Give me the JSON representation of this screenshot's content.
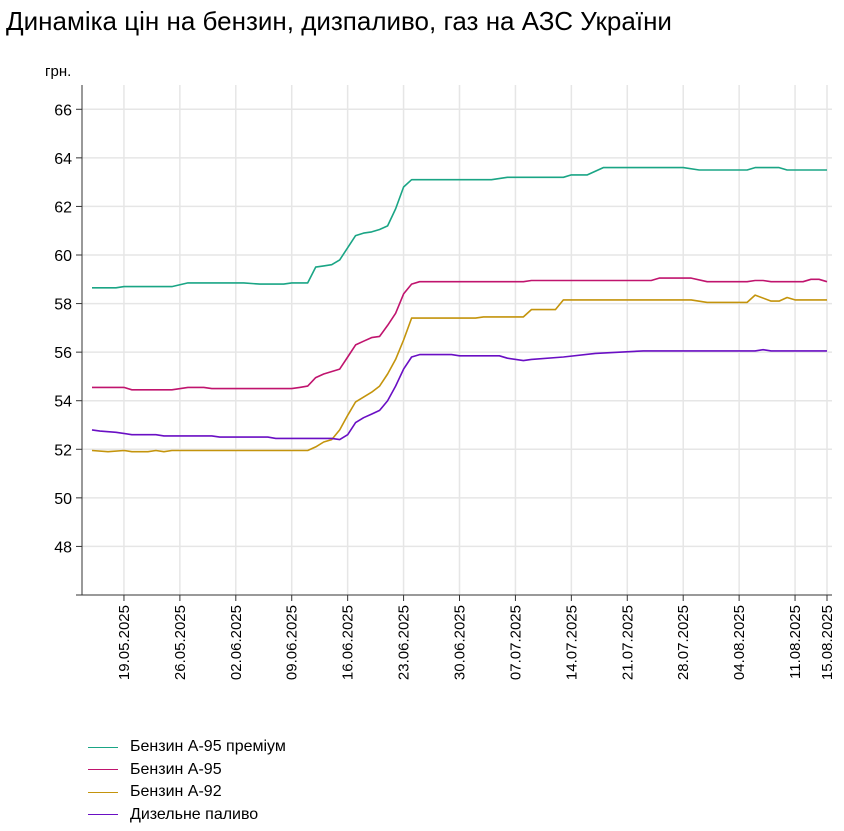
{
  "chart_data": {
    "type": "line",
    "title": "Динаміка цін на бензин, дизпаливо, газ на АЗС України",
    "ylabel": "грн.",
    "xlabel": "",
    "ylim": [
      46,
      67
    ],
    "yticks": [
      48,
      50,
      52,
      54,
      56,
      58,
      60,
      62,
      64,
      66
    ],
    "grid": true,
    "legend_position": "bottom-left",
    "x_dates": [
      "15.05.2025",
      "15.08.2025"
    ],
    "x_tick_labels": [
      "19.05.2025",
      "26.05.2025",
      "02.06.2025",
      "09.06.2025",
      "16.06.2025",
      "23.06.2025",
      "30.06.2025",
      "07.07.2025",
      "14.07.2025",
      "21.07.2025",
      "28.07.2025",
      "04.08.2025",
      "11.08.2025",
      "15.08.2025"
    ],
    "series": [
      {
        "name": "Бензин А-95 преміум",
        "color": "#1aa585",
        "points": [
          [
            "15.05.2025",
            58.65
          ],
          [
            "18.05.2025",
            58.65
          ],
          [
            "19.05.2025",
            58.7
          ],
          [
            "25.05.2025",
            58.7
          ],
          [
            "27.05.2025",
            58.85
          ],
          [
            "03.06.2025",
            58.85
          ],
          [
            "05.06.2025",
            58.8
          ],
          [
            "08.06.2025",
            58.8
          ],
          [
            "09.06.2025",
            58.85
          ],
          [
            "11.06.2025",
            58.85
          ],
          [
            "12.06.2025",
            59.5
          ],
          [
            "13.06.2025",
            59.55
          ],
          [
            "14.06.2025",
            59.6
          ],
          [
            "15.06.2025",
            59.8
          ],
          [
            "16.06.2025",
            60.3
          ],
          [
            "17.06.2025",
            60.8
          ],
          [
            "18.06.2025",
            60.9
          ],
          [
            "19.06.2025",
            60.95
          ],
          [
            "20.06.2025",
            61.05
          ],
          [
            "21.06.2025",
            61.2
          ],
          [
            "22.06.2025",
            61.9
          ],
          [
            "23.06.2025",
            62.8
          ],
          [
            "24.06.2025",
            63.1
          ],
          [
            "04.07.2025",
            63.1
          ],
          [
            "06.07.2025",
            63.2
          ],
          [
            "13.07.2025",
            63.2
          ],
          [
            "14.07.2025",
            63.3
          ],
          [
            "16.07.2025",
            63.3
          ],
          [
            "18.07.2025",
            63.6
          ],
          [
            "28.07.2025",
            63.6
          ],
          [
            "30.07.2025",
            63.5
          ],
          [
            "05.08.2025",
            63.5
          ],
          [
            "06.08.2025",
            63.6
          ],
          [
            "09.08.2025",
            63.6
          ],
          [
            "10.08.2025",
            63.5
          ],
          [
            "15.08.2025",
            63.5
          ]
        ]
      },
      {
        "name": "Бензин А-95",
        "color": "#c0146e",
        "points": [
          [
            "15.05.2025",
            54.55
          ],
          [
            "19.05.2025",
            54.55
          ],
          [
            "20.05.2025",
            54.45
          ],
          [
            "25.05.2025",
            54.45
          ],
          [
            "27.05.2025",
            54.55
          ],
          [
            "29.05.2025",
            54.55
          ],
          [
            "30.05.2025",
            54.5
          ],
          [
            "09.06.2025",
            54.5
          ],
          [
            "10.06.2025",
            54.55
          ],
          [
            "11.06.2025",
            54.6
          ],
          [
            "12.06.2025",
            54.95
          ],
          [
            "13.06.2025",
            55.1
          ],
          [
            "15.06.2025",
            55.3
          ],
          [
            "16.06.2025",
            55.8
          ],
          [
            "17.06.2025",
            56.3
          ],
          [
            "18.06.2025",
            56.45
          ],
          [
            "19.06.2025",
            56.6
          ],
          [
            "20.06.2025",
            56.65
          ],
          [
            "21.06.2025",
            57.1
          ],
          [
            "22.06.2025",
            57.6
          ],
          [
            "23.06.2025",
            58.4
          ],
          [
            "24.06.2025",
            58.8
          ],
          [
            "25.06.2025",
            58.9
          ],
          [
            "08.07.2025",
            58.9
          ],
          [
            "09.07.2025",
            58.95
          ],
          [
            "24.07.2025",
            58.95
          ],
          [
            "25.07.2025",
            59.05
          ],
          [
            "29.07.2025",
            59.05
          ],
          [
            "31.07.2025",
            58.9
          ],
          [
            "05.08.2025",
            58.9
          ],
          [
            "06.08.2025",
            58.95
          ],
          [
            "07.08.2025",
            58.95
          ],
          [
            "08.08.2025",
            58.9
          ],
          [
            "12.08.2025",
            58.9
          ],
          [
            "13.08.2025",
            59.0
          ],
          [
            "14.08.2025",
            59.0
          ],
          [
            "15.08.2025",
            58.9
          ]
        ]
      },
      {
        "name": "Бензин А-92",
        "color": "#c4940c",
        "points": [
          [
            "15.05.2025",
            51.95
          ],
          [
            "17.05.2025",
            51.9
          ],
          [
            "19.05.2025",
            51.95
          ],
          [
            "20.05.2025",
            51.9
          ],
          [
            "22.05.2025",
            51.9
          ],
          [
            "23.05.2025",
            51.95
          ],
          [
            "24.05.2025",
            51.9
          ],
          [
            "25.05.2025",
            51.95
          ],
          [
            "09.06.2025",
            51.95
          ],
          [
            "11.06.2025",
            51.95
          ],
          [
            "12.06.2025",
            52.1
          ],
          [
            "13.06.2025",
            52.3
          ],
          [
            "14.06.2025",
            52.4
          ],
          [
            "15.06.2025",
            52.8
          ],
          [
            "16.06.2025",
            53.4
          ],
          [
            "17.06.2025",
            53.95
          ],
          [
            "18.06.2025",
            54.15
          ],
          [
            "19.06.2025",
            54.35
          ],
          [
            "20.06.2025",
            54.6
          ],
          [
            "21.06.2025",
            55.1
          ],
          [
            "22.06.2025",
            55.7
          ],
          [
            "23.06.2025",
            56.5
          ],
          [
            "24.06.2025",
            57.4
          ],
          [
            "02.07.2025",
            57.4
          ],
          [
            "03.07.2025",
            57.45
          ],
          [
            "08.07.2025",
            57.45
          ],
          [
            "09.07.2025",
            57.75
          ],
          [
            "12.07.2025",
            57.75
          ],
          [
            "13.07.2025",
            58.15
          ],
          [
            "29.07.2025",
            58.15
          ],
          [
            "31.07.2025",
            58.05
          ],
          [
            "05.08.2025",
            58.05
          ],
          [
            "06.08.2025",
            58.35
          ],
          [
            "08.08.2025",
            58.1
          ],
          [
            "09.08.2025",
            58.1
          ],
          [
            "10.08.2025",
            58.25
          ],
          [
            "11.08.2025",
            58.15
          ],
          [
            "15.08.2025",
            58.15
          ]
        ]
      },
      {
        "name": "Дизельне паливо",
        "color": "#6a0fc4",
        "points": [
          [
            "15.05.2025",
            52.8
          ],
          [
            "16.05.2025",
            52.75
          ],
          [
            "18.05.2025",
            52.7
          ],
          [
            "20.05.2025",
            52.6
          ],
          [
            "23.05.2025",
            52.6
          ],
          [
            "24.05.2025",
            52.55
          ],
          [
            "30.05.2025",
            52.55
          ],
          [
            "31.05.2025",
            52.5
          ],
          [
            "06.06.2025",
            52.5
          ],
          [
            "07.06.2025",
            52.45
          ],
          [
            "14.06.2025",
            52.45
          ],
          [
            "15.06.2025",
            52.4
          ],
          [
            "16.06.2025",
            52.6
          ],
          [
            "17.06.2025",
            53.1
          ],
          [
            "18.06.2025",
            53.3
          ],
          [
            "19.06.2025",
            53.45
          ],
          [
            "20.06.2025",
            53.6
          ],
          [
            "21.06.2025",
            54.0
          ],
          [
            "22.06.2025",
            54.6
          ],
          [
            "23.06.2025",
            55.3
          ],
          [
            "24.06.2025",
            55.8
          ],
          [
            "25.06.2025",
            55.9
          ],
          [
            "29.06.2025",
            55.9
          ],
          [
            "30.06.2025",
            55.85
          ],
          [
            "05.07.2025",
            55.85
          ],
          [
            "06.07.2025",
            55.75
          ],
          [
            "08.07.2025",
            55.65
          ],
          [
            "09.07.2025",
            55.7
          ],
          [
            "13.07.2025",
            55.8
          ],
          [
            "17.07.2025",
            55.95
          ],
          [
            "23.07.2025",
            56.05
          ],
          [
            "06.08.2025",
            56.05
          ],
          [
            "07.08.2025",
            56.1
          ],
          [
            "08.08.2025",
            56.05
          ],
          [
            "15.08.2025",
            56.05
          ]
        ]
      }
    ]
  }
}
